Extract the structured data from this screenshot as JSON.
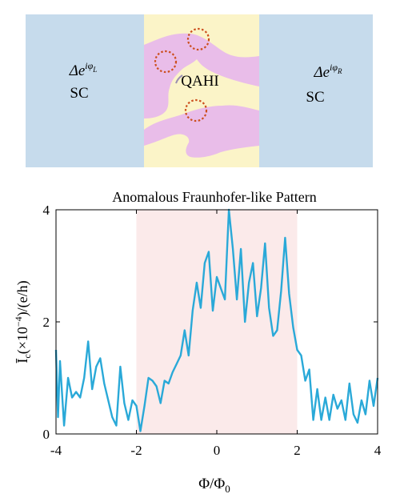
{
  "schematic": {
    "left_label_phase": "Δe^{iφ_L}",
    "left_label_sc": "SC",
    "center_label": "QAHI",
    "right_label_phase": "Δe^{iφ_R}",
    "right_label_sc": "SC",
    "colors": {
      "sc": "#c6dbec",
      "qahi": "#fbf4c8",
      "domain": "#e9bde9",
      "marker": "#cc4f1e"
    }
  },
  "chart_data": {
    "type": "line",
    "title": "Anomalous Fraunhofer-like Pattern",
    "xlabel": "Φ/Φ_0",
    "ylabel": "Ī_c(×10^{-4})/(e/h)",
    "xlim": [
      -4,
      4
    ],
    "ylim": [
      0,
      4
    ],
    "xticks": [
      "-4",
      "-2",
      "0",
      "2",
      "4"
    ],
    "yticks": [
      "0",
      "2",
      "4"
    ],
    "shaded_region": [
      -2,
      2
    ],
    "colors": {
      "line": "#2aa9d8",
      "shade": "#fbeaea"
    },
    "series": [
      {
        "x": [
          -4.0,
          -3.95,
          -3.9,
          -3.8,
          -3.7,
          -3.6,
          -3.5,
          -3.4,
          -3.3,
          -3.2,
          -3.1,
          -3.0,
          -2.9,
          -2.8,
          -2.7,
          -2.6,
          -2.5,
          -2.4,
          -2.3,
          -2.2,
          -2.1,
          -2.0,
          -1.9,
          -1.8,
          -1.7,
          -1.6,
          -1.5,
          -1.4,
          -1.3,
          -1.2,
          -1.1,
          -1.0,
          -0.9,
          -0.8,
          -0.7,
          -0.6,
          -0.5,
          -0.4,
          -0.3,
          -0.2,
          -0.1,
          0.0,
          0.1,
          0.2,
          0.3,
          0.4,
          0.5,
          0.6,
          0.7,
          0.8,
          0.9,
          1.0,
          1.1,
          1.2,
          1.3,
          1.4,
          1.5,
          1.6,
          1.7,
          1.8,
          1.9,
          2.0,
          2.1,
          2.2,
          2.3,
          2.4,
          2.5,
          2.6,
          2.7,
          2.8,
          2.9,
          3.0,
          3.1,
          3.2,
          3.3,
          3.4,
          3.5,
          3.6,
          3.7,
          3.8,
          3.9,
          4.0
        ],
        "y": [
          1.5,
          0.3,
          1.3,
          0.15,
          1.0,
          0.65,
          0.75,
          0.65,
          1.0,
          1.65,
          0.8,
          1.2,
          1.35,
          0.9,
          0.6,
          0.3,
          0.15,
          1.2,
          0.55,
          0.25,
          0.6,
          0.5,
          0.05,
          0.5,
          1.0,
          0.95,
          0.85,
          0.55,
          0.95,
          0.9,
          1.1,
          1.25,
          1.4,
          1.85,
          1.4,
          2.2,
          2.7,
          2.25,
          3.05,
          3.25,
          2.2,
          2.8,
          2.6,
          2.4,
          4.0,
          3.3,
          2.4,
          3.3,
          2.0,
          2.7,
          3.05,
          2.1,
          2.6,
          3.4,
          2.25,
          1.75,
          1.85,
          2.55,
          3.5,
          2.5,
          1.9,
          1.5,
          1.4,
          0.95,
          1.15,
          0.25,
          0.8,
          0.25,
          0.65,
          0.25,
          0.7,
          0.45,
          0.6,
          0.25,
          0.9,
          0.35,
          0.2,
          0.6,
          0.35,
          0.95,
          0.5,
          1.0
        ]
      }
    ]
  }
}
